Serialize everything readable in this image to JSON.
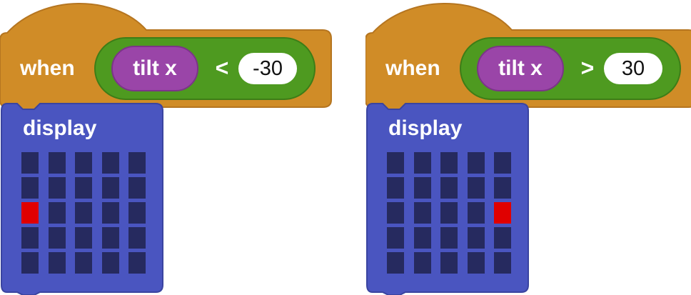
{
  "colors": {
    "event_block": "#d08c27",
    "condition_block": "#4e9a20",
    "reporter_block": "#9a45a8",
    "display_block": "#4a55c0",
    "led_off": "#262a5f",
    "led_on": "#e00000"
  },
  "scripts": [
    {
      "hat_label": "when",
      "reporter_label": "tilt x",
      "operator": "<",
      "value": "-30",
      "display_label": "display",
      "led_grid": [
        [
          0,
          0,
          0,
          0,
          0
        ],
        [
          0,
          0,
          0,
          0,
          0
        ],
        [
          1,
          0,
          0,
          0,
          0
        ],
        [
          0,
          0,
          0,
          0,
          0
        ],
        [
          0,
          0,
          0,
          0,
          0
        ]
      ]
    },
    {
      "hat_label": "when",
      "reporter_label": "tilt x",
      "operator": ">",
      "value": "30",
      "display_label": "display",
      "led_grid": [
        [
          0,
          0,
          0,
          0,
          0
        ],
        [
          0,
          0,
          0,
          0,
          0
        ],
        [
          0,
          0,
          0,
          0,
          1
        ],
        [
          0,
          0,
          0,
          0,
          0
        ],
        [
          0,
          0,
          0,
          0,
          0
        ]
      ]
    }
  ]
}
